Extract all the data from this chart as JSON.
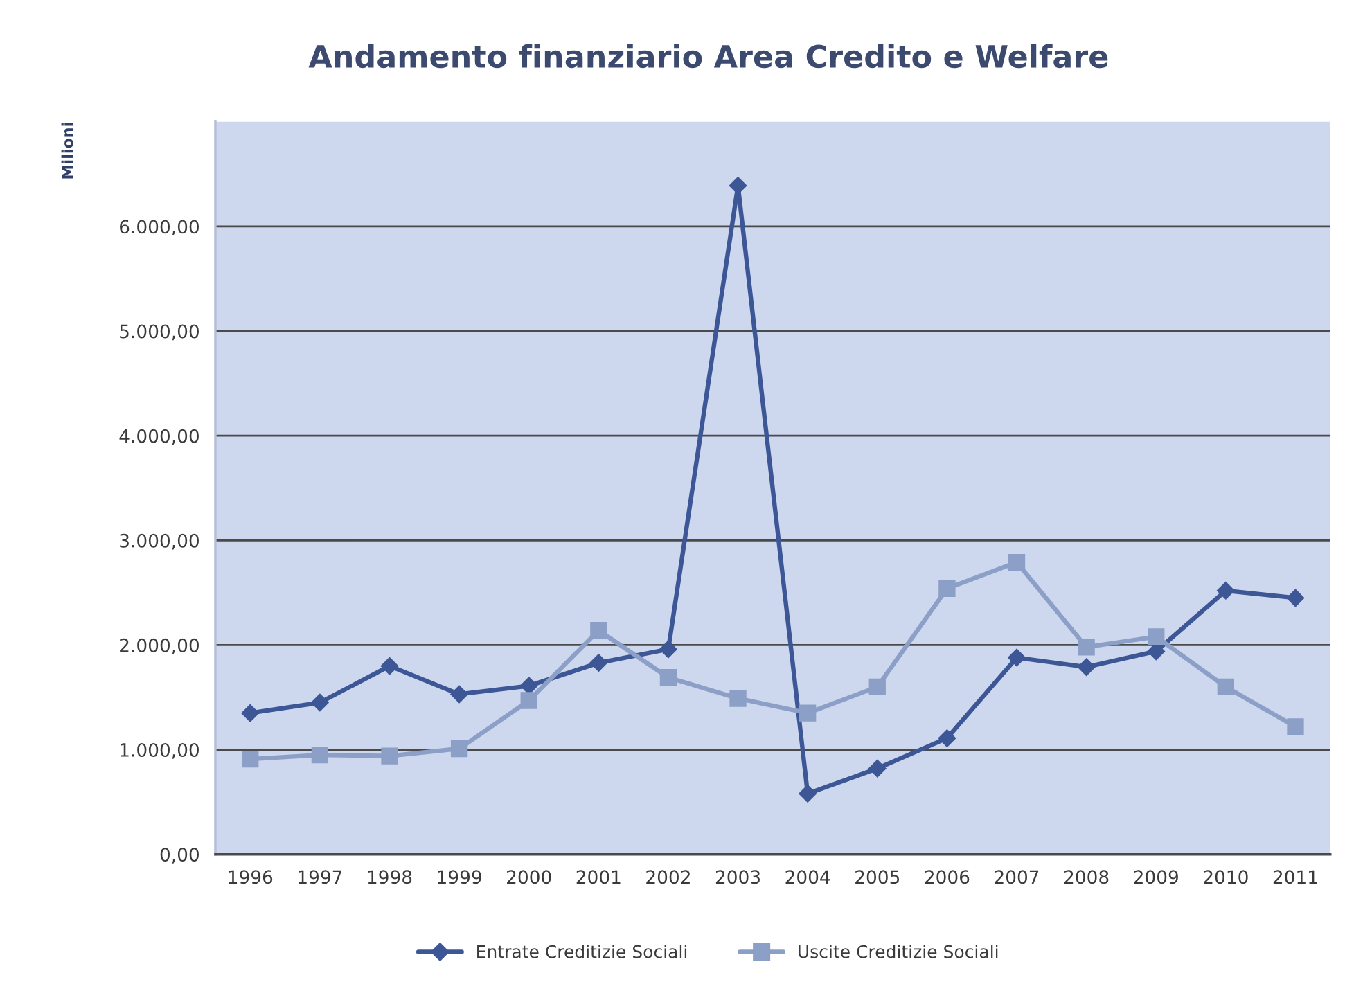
{
  "chart_data": {
    "type": "line",
    "title": "Andamento finanziario Area Credito e Welfare",
    "ylabel": "Milioni",
    "categories": [
      "1996",
      "1997",
      "1998",
      "1999",
      "2000",
      "2001",
      "2002",
      "2003",
      "2004",
      "2005",
      "2006",
      "2007",
      "2008",
      "2009",
      "2010",
      "2011"
    ],
    "series": [
      {
        "name": "Entrate Creditizie Sociali",
        "color": "#3d5796",
        "marker": "diamond",
        "values": [
          1350,
          1450,
          1800,
          1530,
          1610,
          1830,
          1960,
          6390,
          580,
          820,
          1110,
          1880,
          1790,
          1940,
          2520,
          2450
        ]
      },
      {
        "name": "Uscite Creditizie Sociali",
        "color": "#8c9fc6",
        "marker": "square",
        "values": [
          910,
          950,
          940,
          1010,
          1470,
          2140,
          1690,
          1490,
          1350,
          1600,
          2540,
          2790,
          1980,
          2080,
          1600,
          1220
        ]
      }
    ],
    "ylim": [
      0,
      7000
    ],
    "yticks": [
      {
        "value": 0,
        "label": "0,00"
      },
      {
        "value": 1000,
        "label": "1.000,00"
      },
      {
        "value": 2000,
        "label": "2.000,00"
      },
      {
        "value": 3000,
        "label": "3.000,00"
      },
      {
        "value": 4000,
        "label": "4.000,00"
      },
      {
        "value": 5000,
        "label": "5.000,00"
      },
      {
        "value": 6000,
        "label": "6.000,00"
      }
    ],
    "grid": "y",
    "legend": "bottom",
    "line_style": "solid"
  }
}
